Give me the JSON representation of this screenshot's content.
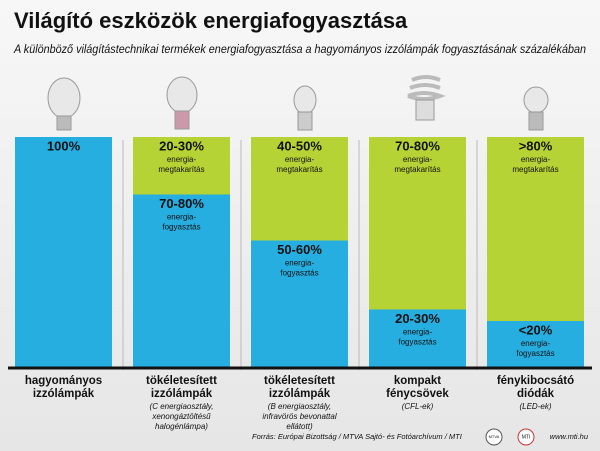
{
  "chart_data": {
    "type": "stacked-bar",
    "title": "Világító eszközök energiafogyasztása",
    "subtitle": "A különböző világítástechnikai termékek energiafogyasztása a hagyományos izzólámpák fogyasztásának százalékában",
    "categories": [
      "hagyományos izzólámpák",
      "tökéletesített izzólámpák",
      "tökéletesített izzólámpák",
      "kompakt fénycsövek",
      "fénykibocsátó diódák"
    ],
    "category_notes": [
      null,
      "(C energiaosztály, xenongáztöltésű halogénlámpa)",
      "(B energiaosztály, infravörös bevonattal ellátott)",
      "(CFL-ek)",
      "(LED-ek)"
    ],
    "ylim": [
      0,
      100
    ],
    "series": [
      {
        "name": "energia-fogyasztás",
        "color": "#27aee0",
        "values": [
          100,
          75,
          55,
          25,
          20
        ],
        "value_labels": [
          "100%",
          "70-80%",
          "50-60%",
          "20-30%",
          "<20%"
        ],
        "captions": [
          null,
          "energia-fogyasztás",
          "energia-fogyasztás",
          "energia-fogyasztás",
          "energia-fogyasztás"
        ]
      },
      {
        "name": "energia-megtakarítás",
        "color": "#b6d335",
        "values": [
          0,
          25,
          45,
          75,
          80
        ],
        "value_labels": [
          null,
          "20-30%",
          "40-50%",
          "70-80%",
          ">80%"
        ],
        "captions": [
          null,
          "energia-megtakarítás",
          "energia-megtakarítás",
          "energia-megtakarítás",
          "energia-megtakarítás"
        ]
      }
    ],
    "source": "Forrás: Európai Bizottság / MTVA Sajtó- és Fotóarchívum / MTI",
    "logos": [
      "MTVA",
      "MTI"
    ],
    "url": "www.mti.hu"
  }
}
